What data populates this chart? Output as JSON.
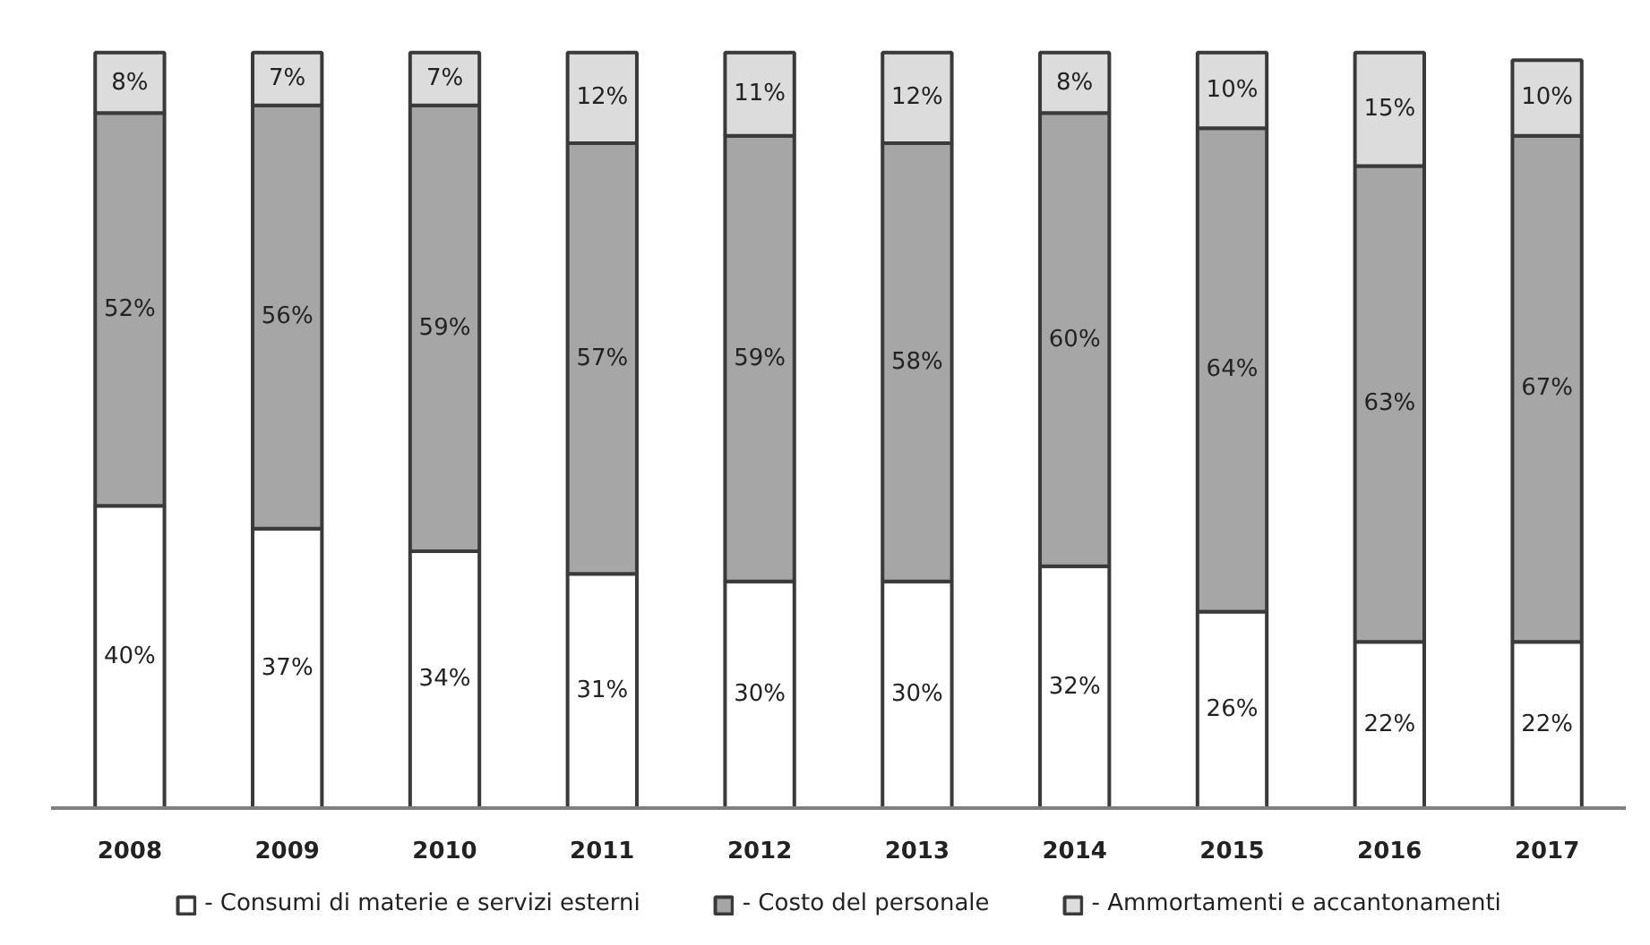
{
  "chart_data": {
    "type": "bar",
    "stacked": true,
    "categories": [
      "2008",
      "2009",
      "2010",
      "2011",
      "2012",
      "2013",
      "2014",
      "2015",
      "2016",
      "2017"
    ],
    "series": [
      {
        "name": "- Consumi di materie e servizi esterni",
        "color": "#ffffff",
        "values": [
          40,
          37,
          34,
          31,
          30,
          30,
          32,
          26,
          22,
          22
        ],
        "value_labels": [
          "40%",
          "37%",
          "34%",
          "31%",
          "30%",
          "30%",
          "32%",
          "26%",
          "22%",
          "22%"
        ]
      },
      {
        "name": "- Costo del personale",
        "color": "#a6a6a6",
        "values": [
          52,
          56,
          59,
          57,
          59,
          58,
          60,
          64,
          63,
          67
        ],
        "value_labels": [
          "52%",
          "56%",
          "59%",
          "57%",
          "59%",
          "58%",
          "60%",
          "64%",
          "63%",
          "67%"
        ]
      },
      {
        "name": "- Ammortamenti e accantonamenti",
        "color": "#dcdcdc",
        "values": [
          8,
          7,
          7,
          12,
          11,
          12,
          8,
          10,
          15,
          10
        ],
        "value_labels": [
          "8%",
          "7%",
          "7%",
          "12%",
          "11%",
          "12%",
          "8%",
          "10%",
          "15%",
          "10%"
        ]
      }
    ],
    "legend": "bottom"
  }
}
